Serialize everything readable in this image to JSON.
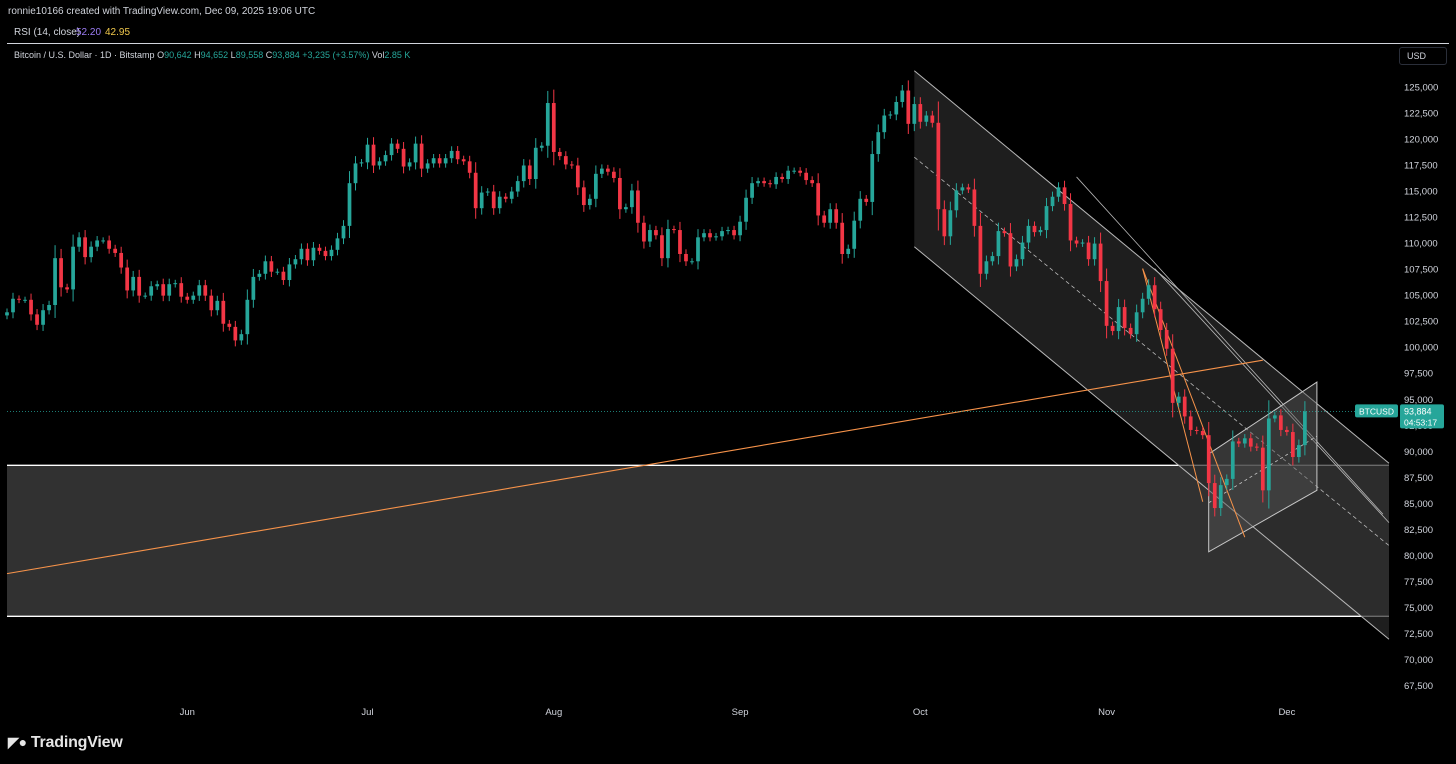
{
  "header": {
    "created_by": "ronnie10166 created with TradingView.com, Dec 09, 2025 19:06 UTC"
  },
  "indicator": {
    "label": "RSI (14, close)",
    "value1": "52.20",
    "value2": "42.95"
  },
  "legend": {
    "symbol": "Bitcoin / U.S. Dollar · 1D · Bitstamp",
    "o_label": "O",
    "o_value": "90,642",
    "h_label": "H",
    "h_value": "94,652",
    "l_label": "L",
    "l_value": "89,558",
    "c_label": "C",
    "c_value": "93,884",
    "change": "+3,235 (+3.57%)",
    "vol_label": "Vol",
    "vol_value": "2.85 K"
  },
  "currency_button": "USD",
  "price_tag": {
    "symbol": "BTCUSD",
    "price": "93,884",
    "countdown": "04:53:17"
  },
  "brand": {
    "name": "TradingView"
  },
  "colors": {
    "up": "#26a69a",
    "down": "#f23645",
    "orange": "#f7934a",
    "white": "#e0e0e0",
    "background": "#000000"
  },
  "chart_data": {
    "type": "candlestick",
    "symbol": "BTCUSD",
    "timeframe": "1D",
    "ylim": [
      65000,
      127500
    ],
    "y_ticks": [
      "125,000",
      "122,500",
      "120,000",
      "117,500",
      "115,000",
      "112,500",
      "110,000",
      "107,500",
      "105,000",
      "102,500",
      "100,000",
      "97,500",
      "95,000",
      "92,500",
      "90,000",
      "87,500",
      "85,000",
      "82,500",
      "80,000",
      "77,500",
      "75,000",
      "72,500",
      "70,000",
      "67,500"
    ],
    "x_tick_labels": [
      "Jun",
      "Jul",
      "Aug",
      "Sep",
      "Oct",
      "Nov",
      "Dec"
    ],
    "x_ticks_index": [
      30,
      60,
      91,
      122,
      152,
      183,
      213
    ],
    "x_range_index": [
      0,
      230
    ],
    "current_price": 93884,
    "closes": [
      103400,
      104700,
      104600,
      104600,
      103200,
      102200,
      103600,
      104100,
      108600,
      105800,
      105600,
      109700,
      110600,
      108700,
      109700,
      110300,
      110300,
      109500,
      109100,
      107700,
      105500,
      106800,
      105000,
      105000,
      105900,
      106100,
      105000,
      106100,
      106200,
      104900,
      104600,
      105000,
      106000,
      105000,
      103600,
      104500,
      102300,
      102000,
      100700,
      101300,
      104600,
      106800,
      107100,
      108300,
      107300,
      107300,
      106500,
      108000,
      108500,
      109500,
      108400,
      109600,
      109300,
      108800,
      109400,
      110500,
      111700,
      115800,
      117700,
      117800,
      119500,
      117500,
      117900,
      118500,
      119600,
      119100,
      117400,
      117800,
      119600,
      117200,
      117700,
      118200,
      117700,
      118200,
      118900,
      118100,
      117900,
      116800,
      113400,
      114900,
      115000,
      113400,
      114500,
      114300,
      115000,
      116000,
      117500,
      116200,
      119200,
      119400,
      123500,
      118800,
      118400,
      117600,
      117500,
      115400,
      113700,
      114300,
      116700,
      117200,
      116900,
      116300,
      113300,
      113500,
      115100,
      112000,
      110200,
      111300,
      110800,
      108600,
      111400,
      111300,
      109000,
      108300,
      108300,
      110600,
      111000,
      110600,
      110700,
      111200,
      111300,
      110800,
      112100,
      114400,
      115800,
      116000,
      115800,
      115700,
      116400,
      116200,
      117000,
      117000,
      116800,
      116100,
      115800,
      112700,
      112000,
      113300,
      112000,
      109000,
      109500,
      112200,
      114300,
      114000,
      118600,
      120700,
      122300,
      122400,
      123600,
      124700,
      121500,
      123400,
      121700,
      122300,
      121600,
      113300,
      110700,
      113200,
      115100,
      115400,
      115200,
      111700,
      107100,
      108300,
      108800,
      111200,
      111000,
      107800,
      108500,
      110100,
      111700,
      111100,
      111300,
      113600,
      114500,
      115400,
      113800,
      110300,
      110000,
      110100,
      108500,
      110000,
      106400,
      102100,
      101600,
      103900,
      101900,
      101300,
      103400,
      104700,
      106000,
      103700,
      101700,
      99900,
      94700,
      95300,
      93400,
      92100,
      92000,
      91600,
      87000,
      84600,
      86800,
      87400,
      91000,
      90800,
      91300,
      90500,
      90400,
      86300,
      93200,
      93500,
      92100,
      91900,
      89500,
      90642,
      93884
    ],
    "series": [
      {
        "name": "BTCUSD",
        "type": "candlestick"
      }
    ]
  }
}
